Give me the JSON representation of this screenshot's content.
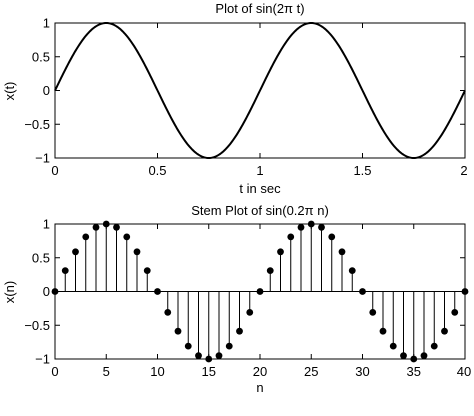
{
  "chart_data": [
    {
      "type": "line",
      "title": "Plot of sin(2π t)",
      "xlabel": "t in sec",
      "ylabel": "x(t)",
      "xlim": [
        0,
        2
      ],
      "ylim": [
        -1,
        1
      ],
      "xticks": [
        0,
        0.5,
        1,
        1.5,
        2
      ],
      "xtick_labels": [
        "0",
        "0.5",
        "1",
        "1.5",
        "2"
      ],
      "yticks": [
        -1,
        -0.5,
        0,
        0.5,
        1
      ],
      "ytick_labels": [
        "−1",
        "−0.5",
        "0",
        "0.5",
        "1"
      ],
      "grid": false,
      "function": "sin(2*pi*t)",
      "x": [
        0,
        0.25,
        0.5,
        0.75,
        1,
        1.25,
        1.5,
        1.75,
        2
      ],
      "values": [
        0,
        1,
        0,
        -1,
        0,
        1,
        0,
        -1,
        0
      ]
    },
    {
      "type": "stem",
      "title": "Stem Plot of sin(0.2π n)",
      "xlabel": "n",
      "ylabel": "x(n)",
      "xlim": [
        0,
        40
      ],
      "ylim": [
        -1,
        1
      ],
      "xticks": [
        0,
        5,
        10,
        15,
        20,
        25,
        30,
        35,
        40
      ],
      "xtick_labels": [
        "0",
        "5",
        "10",
        "15",
        "20",
        "25",
        "30",
        "35",
        "40"
      ],
      "yticks": [
        -1,
        -0.5,
        0,
        0.5,
        1
      ],
      "ytick_labels": [
        "−1",
        "−0.5",
        "0",
        "0.5",
        "1"
      ],
      "grid": false,
      "x": [
        0,
        1,
        2,
        3,
        4,
        5,
        6,
        7,
        8,
        9,
        10,
        11,
        12,
        13,
        14,
        15,
        16,
        17,
        18,
        19,
        20,
        21,
        22,
        23,
        24,
        25,
        26,
        27,
        28,
        29,
        30,
        31,
        32,
        33,
        34,
        35,
        36,
        37,
        38,
        39,
        40
      ],
      "values": [
        0,
        0.309,
        0.588,
        0.809,
        0.951,
        1,
        0.951,
        0.809,
        0.588,
        0.309,
        0,
        -0.309,
        -0.588,
        -0.809,
        -0.951,
        -1,
        -0.951,
        -0.809,
        -0.588,
        -0.309,
        0,
        0.309,
        0.588,
        0.809,
        0.951,
        1,
        0.951,
        0.809,
        0.588,
        0.309,
        0,
        -0.309,
        -0.588,
        -0.809,
        -0.951,
        -1,
        -0.951,
        -0.809,
        -0.588,
        -0.309,
        0
      ]
    }
  ]
}
